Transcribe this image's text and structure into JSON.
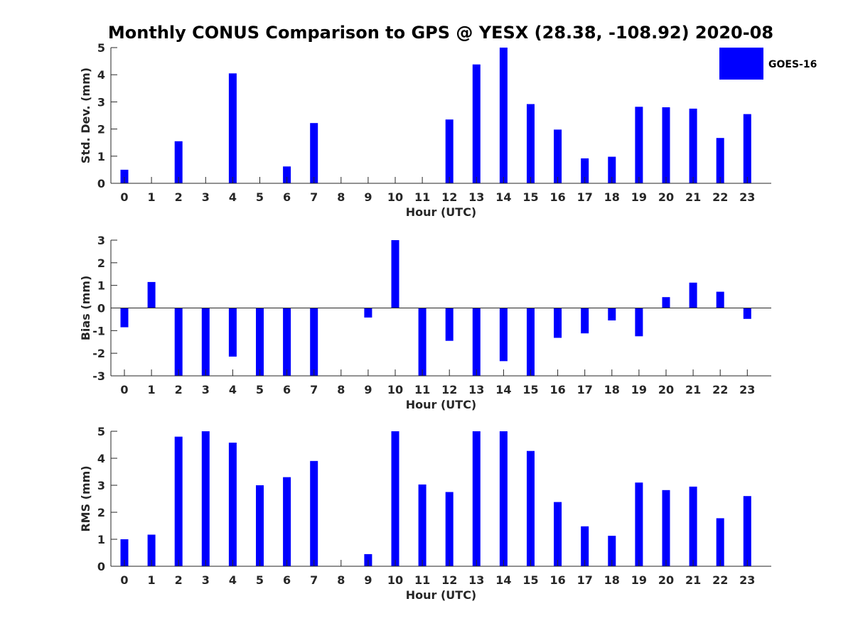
{
  "title": "Monthly CONUS Comparison to GPS @ YESX (28.38, -108.92) 2020-08",
  "colors": {
    "bar": "#0000ff",
    "axis": "#262626"
  },
  "legend": {
    "label": "GOES-16",
    "position": "top-right"
  },
  "chart_data": [
    {
      "type": "bar",
      "series": [
        {
          "name": "GOES-16",
          "values": [
            0.5,
            null,
            1.55,
            null,
            4.05,
            null,
            0.62,
            2.22,
            null,
            null,
            null,
            null,
            2.35,
            4.38,
            5.0,
            2.92,
            1.98,
            0.92,
            0.98,
            2.82,
            2.8,
            2.75,
            1.67,
            2.55
          ]
        }
      ],
      "categories": [
        "0",
        "1",
        "2",
        "3",
        "4",
        "5",
        "6",
        "7",
        "8",
        "9",
        "10",
        "11",
        "12",
        "13",
        "14",
        "15",
        "16",
        "17",
        "18",
        "19",
        "20",
        "21",
        "22",
        "23"
      ],
      "xlabel": "Hour (UTC)",
      "ylabel": "Std. Dev. (mm)",
      "ylim": [
        0,
        5
      ],
      "yticks": [
        "0",
        "1",
        "2",
        "3",
        "4",
        "5"
      ]
    },
    {
      "type": "bar",
      "series": [
        {
          "name": "GOES-16",
          "values": [
            -0.85,
            1.15,
            -3,
            -3,
            -2.15,
            -3,
            -3,
            -3,
            null,
            -0.42,
            3.0,
            -3,
            -1.45,
            -3,
            -2.35,
            -3,
            -1.32,
            -1.12,
            -0.55,
            -1.25,
            0.48,
            1.12,
            0.72,
            -0.48
          ]
        }
      ],
      "categories": [
        "0",
        "1",
        "2",
        "3",
        "4",
        "5",
        "6",
        "7",
        "8",
        "9",
        "10",
        "11",
        "12",
        "13",
        "14",
        "15",
        "16",
        "17",
        "18",
        "19",
        "20",
        "21",
        "22",
        "23"
      ],
      "xlabel": "Hour (UTC)",
      "ylabel": "Bias (mm)",
      "ylim": [
        -3,
        3
      ],
      "yticks": [
        "-3",
        "-2",
        "-1",
        "0",
        "1",
        "2",
        "3"
      ]
    },
    {
      "type": "bar",
      "series": [
        {
          "name": "GOES-16",
          "values": [
            1.0,
            1.17,
            4.8,
            5.0,
            4.58,
            3.0,
            3.3,
            3.9,
            null,
            0.45,
            5.0,
            3.03,
            2.75,
            5.0,
            5.0,
            4.27,
            2.38,
            1.48,
            1.13,
            3.1,
            2.82,
            2.95,
            1.78,
            2.6
          ]
        }
      ],
      "categories": [
        "0",
        "1",
        "2",
        "3",
        "4",
        "5",
        "6",
        "7",
        "8",
        "9",
        "10",
        "11",
        "12",
        "13",
        "14",
        "15",
        "16",
        "17",
        "18",
        "19",
        "20",
        "21",
        "22",
        "23"
      ],
      "xlabel": "Hour (UTC)",
      "ylabel": "RMS (mm)",
      "ylim": [
        0,
        5
      ],
      "yticks": [
        "0",
        "1",
        "2",
        "3",
        "4",
        "5"
      ]
    }
  ]
}
